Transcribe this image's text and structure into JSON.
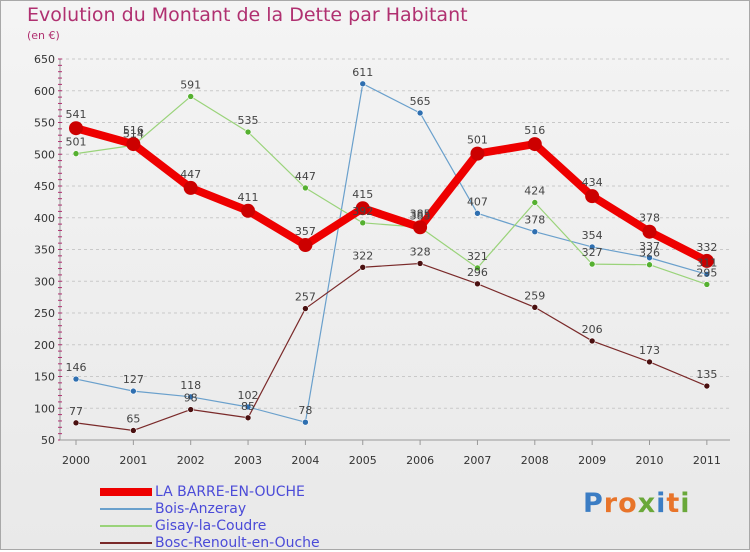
{
  "title": "Evolution du Montant de la Dette par Habitant",
  "unit_label": "(en €)",
  "logo": {
    "text": "Proxiti",
    "letters": [
      "P",
      "r",
      "o",
      "x",
      "i",
      "t",
      "i"
    ],
    "colors": [
      "#3b7dc4",
      "#e8742a",
      "#e8742a",
      "#6aa83a",
      "#3b7dc4",
      "#e8742a",
      "#6aa83a"
    ]
  },
  "colors": {
    "grid": "#c9c9c9",
    "axis_text": "#333333",
    "label_text": "#444444"
  },
  "chart_data": {
    "type": "line",
    "title": "Evolution du Montant de la Dette par Habitant",
    "ylabel": "(en €)",
    "x": [
      "2000",
      "2001",
      "2002",
      "2003",
      "2004",
      "2005",
      "2006",
      "2007",
      "2008",
      "2009",
      "2010",
      "2011"
    ],
    "ylim": [
      50,
      650
    ],
    "yticks": [
      "50",
      "100",
      "150",
      "200",
      "250",
      "300",
      "350",
      "400",
      "450",
      "500",
      "550",
      "600",
      "650"
    ],
    "grid": true,
    "legend_position": "bottom-left",
    "series": [
      {
        "name": "LA BARRE-EN-OUCHE",
        "color": "#ee0000",
        "width": 8,
        "values": [
          541,
          516,
          447,
          411,
          357,
          415,
          385,
          501,
          516,
          434,
          378,
          332
        ],
        "labels": [
          "541",
          "516",
          "447",
          "411",
          "357",
          "415",
          "385",
          "501",
          "516",
          "434",
          "378",
          "332"
        ]
      },
      {
        "name": "Bois-Anzeray",
        "color": "#6aa0cc",
        "width": 1.2,
        "values": [
          146,
          127,
          118,
          102,
          78,
          611,
          565,
          407,
          378,
          354,
          337,
          311
        ],
        "labels": [
          "146",
          "127",
          "118",
          "102",
          "78",
          "611",
          "565",
          "407",
          "378",
          "354",
          "337",
          "311"
        ]
      },
      {
        "name": "Gisay-la-Coudre",
        "color": "#9ad37a",
        "width": 1.2,
        "values": [
          501,
          514,
          591,
          535,
          447,
          392,
          385,
          321,
          424,
          327,
          326,
          295
        ],
        "labels": [
          "501",
          "514",
          "591",
          "535",
          "447",
          "392",
          "385",
          "321",
          "424",
          "327",
          "326",
          "295"
        ]
      },
      {
        "name": "Bosc-Renoult-en-Ouche",
        "color": "#7a2a2a",
        "width": 1.2,
        "values": [
          77,
          65,
          98,
          85,
          257,
          322,
          328,
          296,
          259,
          206,
          173,
          135
        ],
        "labels": [
          "77",
          "65",
          "98",
          "85",
          "257",
          "322",
          "328",
          "296",
          "259",
          "206",
          "173",
          "135"
        ]
      }
    ]
  }
}
